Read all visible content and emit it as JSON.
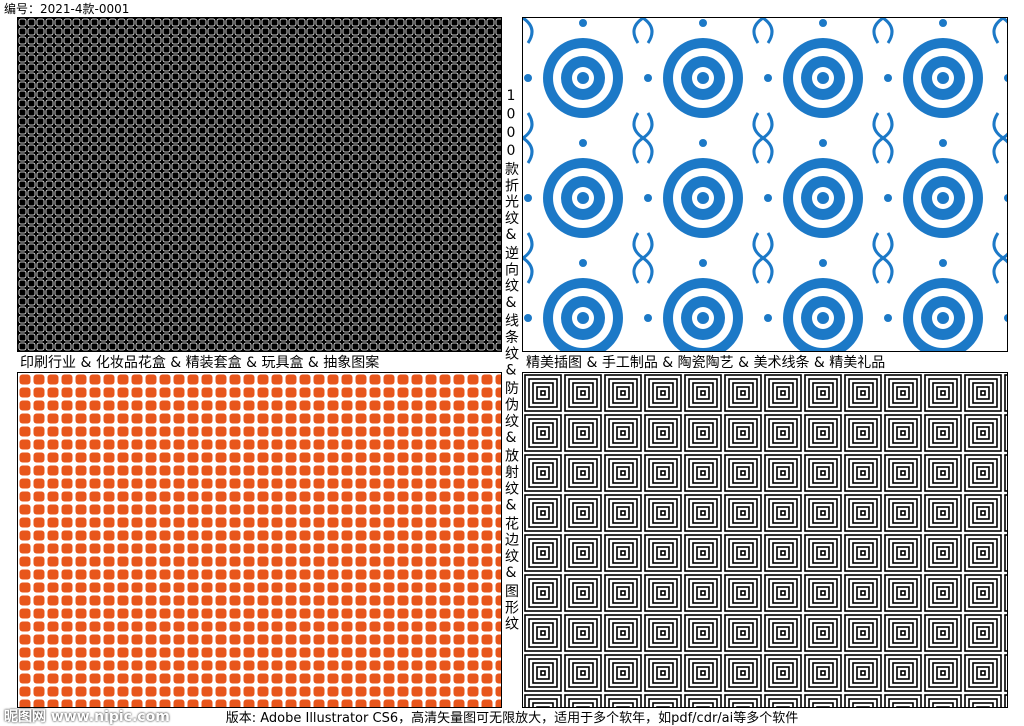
{
  "header": {
    "code": "编号：2021-4款-0001"
  },
  "side_text": "1000款折光纹&逆向纹&线条纹&防伪纹&放射纹&花边纹&图形纹",
  "captions": {
    "left": "印刷行业 & 化妆品花盒 & 精装套盒 & 玩具盒 & 抽象图案",
    "right": "精美插图 & 手工制品 & 陶瓷陶艺 & 美术线条 & 精美礼品"
  },
  "footer": "版本: Adobe Illustrator CS6，高清矢量图可无限放大，适用于多个软年，如pdf/cdr/ai等多个软件",
  "watermark": "昵图网 www.nipic.com"
}
